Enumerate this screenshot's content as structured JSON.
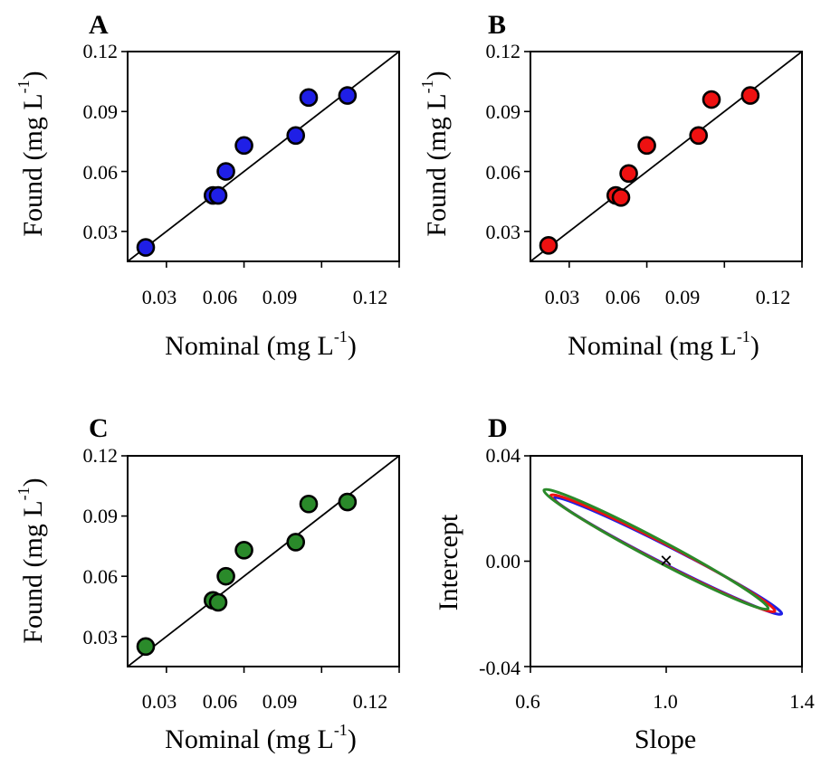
{
  "chart_data": [
    {
      "panel": "A",
      "type": "scatter",
      "color": "#1f1fe6",
      "xlabel": "Nominal (mg L",
      "xlabel_sup": "-1",
      "xlabel_end": ")",
      "ylabel": "Found (mg L",
      "ylabel_sup": "-1",
      "ylabel_end": ")",
      "xlim": [
        0.015,
        0.12
      ],
      "ylim": [
        0.015,
        0.12
      ],
      "xticks": [
        "0.03",
        "0.06",
        "0.09",
        "0.12"
      ],
      "yticks": [
        "0.03",
        "0.06",
        "0.09",
        "0.12"
      ],
      "line": [
        [
          0.015,
          0.015
        ],
        [
          0.12,
          0.12
        ]
      ],
      "points": [
        {
          "x": 0.022,
          "y": 0.022
        },
        {
          "x": 0.048,
          "y": 0.048
        },
        {
          "x": 0.05,
          "y": 0.048
        },
        {
          "x": 0.053,
          "y": 0.06
        },
        {
          "x": 0.06,
          "y": 0.073
        },
        {
          "x": 0.08,
          "y": 0.078
        },
        {
          "x": 0.085,
          "y": 0.097
        },
        {
          "x": 0.1,
          "y": 0.098
        }
      ]
    },
    {
      "panel": "B",
      "type": "scatter",
      "color": "#ee1111",
      "xlabel": "Nominal (mg L",
      "xlabel_sup": "-1",
      "xlabel_end": ")",
      "ylabel": "Found (mg L",
      "ylabel_sup": "-1",
      "ylabel_end": ")",
      "xlim": [
        0.015,
        0.12
      ],
      "ylim": [
        0.015,
        0.12
      ],
      "xticks": [
        "0.03",
        "0.06",
        "0.09",
        "0.12"
      ],
      "yticks": [
        "0.03",
        "0.06",
        "0.09",
        "0.12"
      ],
      "line": [
        [
          0.015,
          0.015
        ],
        [
          0.12,
          0.12
        ]
      ],
      "points": [
        {
          "x": 0.022,
          "y": 0.023
        },
        {
          "x": 0.048,
          "y": 0.048
        },
        {
          "x": 0.05,
          "y": 0.047
        },
        {
          "x": 0.053,
          "y": 0.059
        },
        {
          "x": 0.06,
          "y": 0.073
        },
        {
          "x": 0.08,
          "y": 0.078
        },
        {
          "x": 0.085,
          "y": 0.096
        },
        {
          "x": 0.1,
          "y": 0.098
        }
      ]
    },
    {
      "panel": "C",
      "type": "scatter",
      "color": "#2a8a2a",
      "xlabel": "Nominal (mg L",
      "xlabel_sup": "-1",
      "xlabel_end": ")",
      "ylabel": "Found (mg L",
      "ylabel_sup": "-1",
      "ylabel_end": ")",
      "xlim": [
        0.015,
        0.12
      ],
      "ylim": [
        0.015,
        0.12
      ],
      "xticks": [
        "0.03",
        "0.06",
        "0.09",
        "0.12"
      ],
      "yticks": [
        "0.03",
        "0.06",
        "0.09",
        "0.12"
      ],
      "line": [
        [
          0.015,
          0.015
        ],
        [
          0.12,
          0.12
        ]
      ],
      "points": [
        {
          "x": 0.022,
          "y": 0.025
        },
        {
          "x": 0.048,
          "y": 0.048
        },
        {
          "x": 0.05,
          "y": 0.047
        },
        {
          "x": 0.053,
          "y": 0.06
        },
        {
          "x": 0.06,
          "y": 0.073
        },
        {
          "x": 0.08,
          "y": 0.077
        },
        {
          "x": 0.085,
          "y": 0.096
        },
        {
          "x": 0.1,
          "y": 0.097
        }
      ]
    },
    {
      "panel": "D",
      "type": "line",
      "xlabel": "Slope",
      "ylabel": "Intercept",
      "xlim": [
        0.6,
        1.4
      ],
      "ylim": [
        -0.04,
        0.04
      ],
      "xticks": [
        "0.6",
        "1.0",
        "1.4"
      ],
      "yticks": [
        "-0.04",
        "0.00",
        "0.04"
      ],
      "marker": {
        "x": 1.0,
        "y": 0.0,
        "symbol": "×"
      },
      "series": [
        {
          "color": "#1f1fe6",
          "ellipse": {
            "cx": 1.0,
            "cy": 0.0,
            "ends": [
              [
                0.67,
                0.024
              ],
              [
                1.34,
                -0.02
              ]
            ],
            "half_width": 0.051
          }
        },
        {
          "color": "#ee1111",
          "ellipse": {
            "cx": 1.0,
            "cy": 0.0,
            "ends": [
              [
                0.66,
                0.025
              ],
              [
                1.32,
                -0.019
              ]
            ],
            "half_width": 0.055
          }
        },
        {
          "color": "#2a8a2a",
          "ellipse": {
            "cx": 1.0,
            "cy": 0.0,
            "ends": [
              [
                0.64,
                0.027
              ],
              [
                1.3,
                -0.018
              ]
            ],
            "half_width": 0.06
          }
        }
      ]
    }
  ]
}
